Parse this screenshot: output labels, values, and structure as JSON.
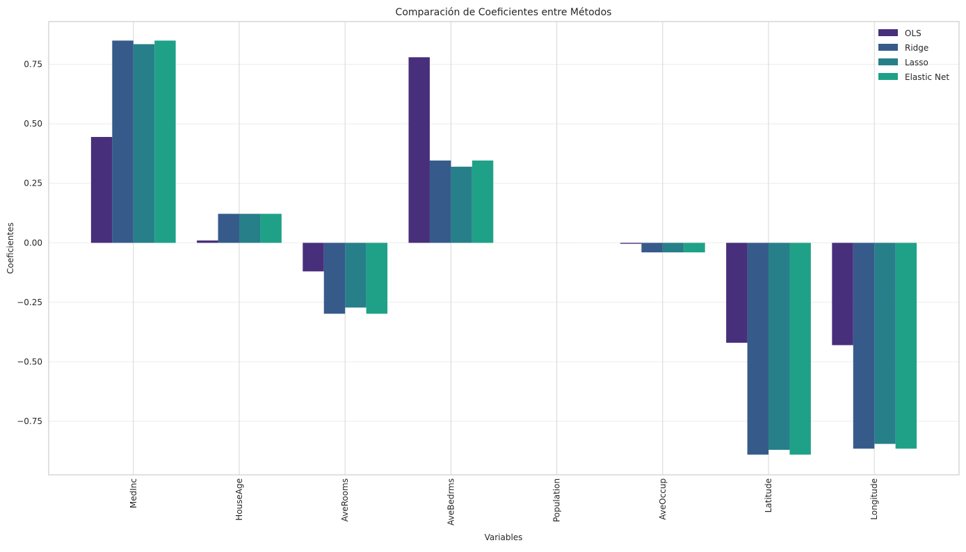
{
  "chart_data": {
    "type": "bar",
    "title": "Comparación de Coeficientes entre Métodos",
    "xlabel": "Variables",
    "ylabel": "Coeficientes",
    "categories": [
      "MedInc",
      "HouseAge",
      "AveRooms",
      "AveBedrms",
      "Population",
      "AveOccup",
      "Latitude",
      "Longitude"
    ],
    "series": [
      {
        "name": "OLS",
        "color": "#482f7b",
        "values": [
          0.445,
          0.01,
          -0.12,
          0.78,
          0.0,
          -0.004,
          -0.42,
          -0.43
        ]
      },
      {
        "name": "Ridge",
        "color": "#365b8b",
        "values": [
          0.85,
          0.122,
          -0.298,
          0.346,
          0.0,
          -0.04,
          -0.89,
          -0.865
        ]
      },
      {
        "name": "Lasso",
        "color": "#277f8a",
        "values": [
          0.835,
          0.122,
          -0.272,
          0.32,
          0.0,
          -0.04,
          -0.87,
          -0.845
        ]
      },
      {
        "name": "Elastic Net",
        "color": "#1fa187",
        "values": [
          0.85,
          0.122,
          -0.298,
          0.346,
          0.0,
          -0.04,
          -0.89,
          -0.865
        ]
      }
    ],
    "yticks": [
      0.75,
      0.5,
      0.25,
      0.0,
      -0.25,
      -0.5,
      -0.75
    ],
    "ytick_labels": [
      "0.75",
      "0.50",
      "0.25",
      "0.00",
      "−0.25",
      "−0.50",
      "−0.75"
    ],
    "ylim": [
      -0.975,
      0.93
    ],
    "grid": true,
    "legend_position": "top-right"
  }
}
